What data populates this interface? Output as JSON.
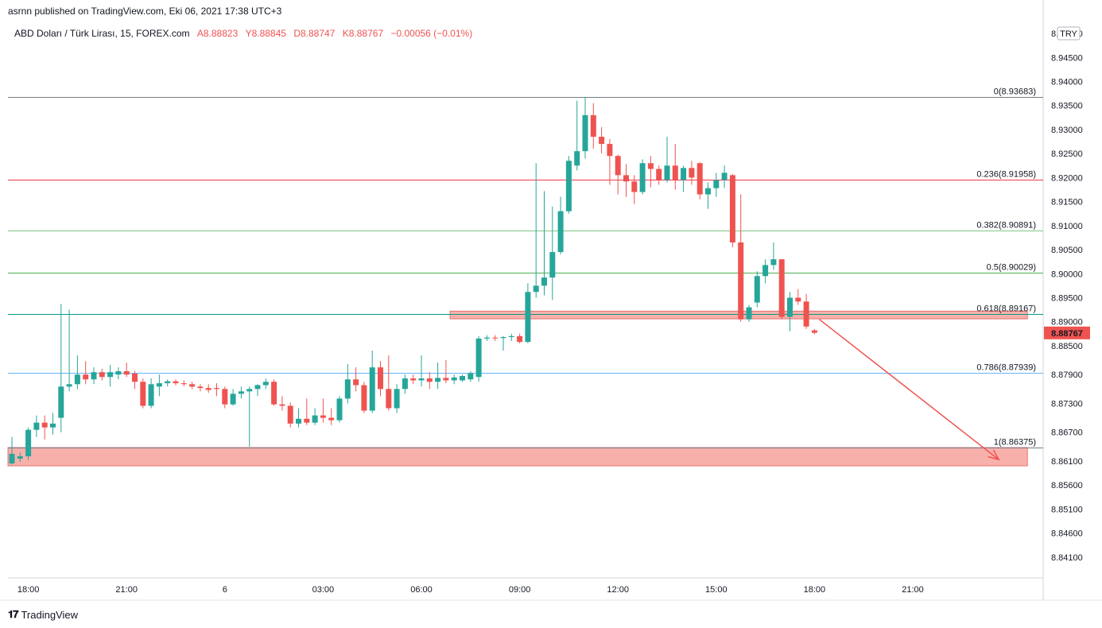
{
  "attribution": "asrnn published on TradingView.com, Eki 06, 2021 17:38 UTC+3",
  "symbol": {
    "name": "ABD Doları / Türk Lirası, 15, FOREX.com",
    "open": "A8.88823",
    "high": "Y8.88845",
    "low": "D8.88747",
    "close": "K8.88767",
    "change": "−0.00056 (−0.01%)"
  },
  "currency_badge": "TRY",
  "footer": {
    "logo_text": "TradingView"
  },
  "colors": {
    "up": "#26a69a",
    "down": "#ef5350",
    "zone": "#f7a29b",
    "arrow": "#ef5350"
  },
  "chart_data": {
    "type": "candlestick",
    "title": "ABD Doları / Türk Lirası, 15, FOREX.com",
    "ylim": [
      8.838,
      8.952
    ],
    "y_ticks": [
      "8.95000",
      "8.94500",
      "8.94000",
      "8.93500",
      "8.93000",
      "8.92500",
      "8.92000",
      "8.91500",
      "8.91000",
      "8.90500",
      "8.90000",
      "8.89500",
      "8.89000",
      "8.88500",
      "8.87900",
      "8.87300",
      "8.86700",
      "8.86100",
      "8.85600",
      "8.85100",
      "8.84600",
      "8.84100"
    ],
    "x_ticks": [
      {
        "label": "18:00",
        "t": 2
      },
      {
        "label": "21:00",
        "t": 14
      },
      {
        "label": "6",
        "t": 26
      },
      {
        "label": "03:00",
        "t": 38
      },
      {
        "label": "06:00",
        "t": 50
      },
      {
        "label": "09:00",
        "t": 62
      },
      {
        "label": "12:00",
        "t": 74
      },
      {
        "label": "15:00",
        "t": 86
      },
      {
        "label": "18:00",
        "t": 98
      },
      {
        "label": "21:00",
        "t": 110
      }
    ],
    "fibonacci": [
      {
        "label": "0(8.93683)",
        "level": 8.93683,
        "color": "#787b86"
      },
      {
        "label": "0.236(8.91958)",
        "level": 8.91958,
        "color": "#f23645"
      },
      {
        "label": "0.382(8.90891)",
        "level": 8.90891,
        "color": "#81c784"
      },
      {
        "label": "0.5(8.90029)",
        "level": 8.90029,
        "color": "#4caf50"
      },
      {
        "label": "0.618(8.89167)",
        "level": 8.89167,
        "color": "#089981"
      },
      {
        "label": "0.786(8.87939)",
        "level": 8.87939,
        "color": "#64b5f6"
      },
      {
        "label": "1(8.86375)",
        "level": 8.86375,
        "color": "#787b86"
      }
    ],
    "zones": [
      {
        "from_t": -0.5,
        "to_t": 124,
        "low": 8.86,
        "high": 8.8638
      },
      {
        "from_t": 53.5,
        "to_t": 124,
        "low": 8.8906,
        "high": 8.8922
      }
    ],
    "arrow": {
      "from_t": 98,
      "from_price": 8.8905,
      "to_t": 120.5,
      "to_price": 8.8613
    },
    "last_price": {
      "label": "8.88767",
      "value": 8.88767
    },
    "candles": [
      {
        "t": 0,
        "o": 8.8605,
        "h": 8.866,
        "l": 8.8603,
        "c": 8.8625
      },
      {
        "t": 1,
        "o": 8.8615,
        "h": 8.8628,
        "l": 8.8608,
        "c": 8.862
      },
      {
        "t": 2,
        "o": 8.862,
        "h": 8.868,
        "l": 8.8612,
        "c": 8.8675
      },
      {
        "t": 3,
        "o": 8.8675,
        "h": 8.8705,
        "l": 8.866,
        "c": 8.869
      },
      {
        "t": 4,
        "o": 8.869,
        "h": 8.8705,
        "l": 8.8655,
        "c": 8.868
      },
      {
        "t": 5,
        "o": 8.868,
        "h": 8.871,
        "l": 8.8665,
        "c": 8.8688
      },
      {
        "t": 6,
        "o": 8.87,
        "h": 8.8937,
        "l": 8.867,
        "c": 8.8765
      },
      {
        "t": 7,
        "o": 8.8765,
        "h": 8.8925,
        "l": 8.8755,
        "c": 8.877
      },
      {
        "t": 8,
        "o": 8.877,
        "h": 8.883,
        "l": 8.876,
        "c": 8.879
      },
      {
        "t": 9,
        "o": 8.879,
        "h": 8.8818,
        "l": 8.877,
        "c": 8.878
      },
      {
        "t": 10,
        "o": 8.878,
        "h": 8.8805,
        "l": 8.877,
        "c": 8.8795
      },
      {
        "t": 11,
        "o": 8.8795,
        "h": 8.8802,
        "l": 8.8778,
        "c": 8.8785
      },
      {
        "t": 12,
        "o": 8.8785,
        "h": 8.881,
        "l": 8.8765,
        "c": 8.8795
      },
      {
        "t": 13,
        "o": 8.879,
        "h": 8.8805,
        "l": 8.878,
        "c": 8.8797
      },
      {
        "t": 14,
        "o": 8.8797,
        "h": 8.8815,
        "l": 8.8785,
        "c": 8.879
      },
      {
        "t": 15,
        "o": 8.8792,
        "h": 8.8798,
        "l": 8.876,
        "c": 8.8775
      },
      {
        "t": 16,
        "o": 8.8775,
        "h": 8.8782,
        "l": 8.872,
        "c": 8.8725
      },
      {
        "t": 17,
        "o": 8.8725,
        "h": 8.8782,
        "l": 8.872,
        "c": 8.877
      },
      {
        "t": 18,
        "o": 8.8765,
        "h": 8.879,
        "l": 8.8745,
        "c": 8.8772
      },
      {
        "t": 19,
        "o": 8.8772,
        "h": 8.878,
        "l": 8.8765,
        "c": 8.8776
      },
      {
        "t": 20,
        "o": 8.8776,
        "h": 8.878,
        "l": 8.8768,
        "c": 8.8772
      },
      {
        "t": 21,
        "o": 8.8772,
        "h": 8.8778,
        "l": 8.8766,
        "c": 8.877
      },
      {
        "t": 22,
        "o": 8.877,
        "h": 8.8775,
        "l": 8.876,
        "c": 8.8765
      },
      {
        "t": 23,
        "o": 8.8765,
        "h": 8.877,
        "l": 8.8755,
        "c": 8.8762
      },
      {
        "t": 24,
        "o": 8.8762,
        "h": 8.877,
        "l": 8.8752,
        "c": 8.8758
      },
      {
        "t": 25,
        "o": 8.8762,
        "h": 8.8772,
        "l": 8.8745,
        "c": 8.876
      },
      {
        "t": 26,
        "o": 8.876,
        "h": 8.8765,
        "l": 8.872,
        "c": 8.8728
      },
      {
        "t": 27,
        "o": 8.8728,
        "h": 8.876,
        "l": 8.8725,
        "c": 8.875
      },
      {
        "t": 28,
        "o": 8.875,
        "h": 8.8765,
        "l": 8.874,
        "c": 8.8755
      },
      {
        "t": 29,
        "o": 8.8755,
        "h": 8.8765,
        "l": 8.864,
        "c": 8.876
      },
      {
        "t": 30,
        "o": 8.876,
        "h": 8.877,
        "l": 8.8745,
        "c": 8.8768
      },
      {
        "t": 31,
        "o": 8.8768,
        "h": 8.8782,
        "l": 8.876,
        "c": 8.8775
      },
      {
        "t": 32,
        "o": 8.8775,
        "h": 8.878,
        "l": 8.8725,
        "c": 8.8728
      },
      {
        "t": 33,
        "o": 8.8728,
        "h": 8.8745,
        "l": 8.8715,
        "c": 8.8725
      },
      {
        "t": 34,
        "o": 8.8725,
        "h": 8.8732,
        "l": 8.868,
        "c": 8.8688
      },
      {
        "t": 35,
        "o": 8.8688,
        "h": 8.872,
        "l": 8.868,
        "c": 8.8698
      },
      {
        "t": 36,
        "o": 8.8698,
        "h": 8.874,
        "l": 8.8685,
        "c": 8.869
      },
      {
        "t": 37,
        "o": 8.869,
        "h": 8.872,
        "l": 8.8685,
        "c": 8.8705
      },
      {
        "t": 38,
        "o": 8.8705,
        "h": 8.874,
        "l": 8.869,
        "c": 8.87
      },
      {
        "t": 39,
        "o": 8.87,
        "h": 8.872,
        "l": 8.8685,
        "c": 8.8695
      },
      {
        "t": 40,
        "o": 8.8695,
        "h": 8.8745,
        "l": 8.869,
        "c": 8.874
      },
      {
        "t": 41,
        "o": 8.874,
        "h": 8.8812,
        "l": 8.873,
        "c": 8.878
      },
      {
        "t": 42,
        "o": 8.878,
        "h": 8.8805,
        "l": 8.8755,
        "c": 8.8768
      },
      {
        "t": 43,
        "o": 8.8768,
        "h": 8.8775,
        "l": 8.871,
        "c": 8.8715
      },
      {
        "t": 44,
        "o": 8.8715,
        "h": 8.884,
        "l": 8.871,
        "c": 8.8805
      },
      {
        "t": 45,
        "o": 8.8805,
        "h": 8.8818,
        "l": 8.8745,
        "c": 8.876
      },
      {
        "t": 46,
        "o": 8.876,
        "h": 8.883,
        "l": 8.8715,
        "c": 8.872
      },
      {
        "t": 47,
        "o": 8.872,
        "h": 8.877,
        "l": 8.871,
        "c": 8.876
      },
      {
        "t": 48,
        "o": 8.876,
        "h": 8.879,
        "l": 8.875,
        "c": 8.8782
      },
      {
        "t": 49,
        "o": 8.8782,
        "h": 8.879,
        "l": 8.877,
        "c": 8.8778
      },
      {
        "t": 50,
        "o": 8.8778,
        "h": 8.883,
        "l": 8.8765,
        "c": 8.8782
      },
      {
        "t": 51,
        "o": 8.8782,
        "h": 8.8795,
        "l": 8.876,
        "c": 8.8775
      },
      {
        "t": 52,
        "o": 8.8775,
        "h": 8.8815,
        "l": 8.876,
        "c": 8.8783
      },
      {
        "t": 53,
        "o": 8.8783,
        "h": 8.882,
        "l": 8.8772,
        "c": 8.8778
      },
      {
        "t": 54,
        "o": 8.8778,
        "h": 8.879,
        "l": 8.877,
        "c": 8.8784
      },
      {
        "t": 55,
        "o": 8.8778,
        "h": 8.879,
        "l": 8.8775,
        "c": 8.8787
      },
      {
        "t": 56,
        "o": 8.878,
        "h": 8.8797,
        "l": 8.8775,
        "c": 8.8793
      },
      {
        "t": 57,
        "o": 8.8785,
        "h": 8.887,
        "l": 8.8775,
        "c": 8.8865
      },
      {
        "t": 58,
        "o": 8.8865,
        "h": 8.8872,
        "l": 8.886,
        "c": 8.8867
      },
      {
        "t": 59,
        "o": 8.8867,
        "h": 8.8872,
        "l": 8.886,
        "c": 8.8866
      },
      {
        "t": 60,
        "o": 8.8866,
        "h": 8.887,
        "l": 8.884,
        "c": 8.8868
      },
      {
        "t": 61,
        "o": 8.8868,
        "h": 8.8875,
        "l": 8.886,
        "c": 8.887
      },
      {
        "t": 62,
        "o": 8.887,
        "h": 8.8875,
        "l": 8.8855,
        "c": 8.8858
      },
      {
        "t": 63,
        "o": 8.8858,
        "h": 8.898,
        "l": 8.8855,
        "c": 8.8962
      },
      {
        "t": 64,
        "o": 8.8962,
        "h": 8.923,
        "l": 8.895,
        "c": 8.8975
      },
      {
        "t": 65,
        "o": 8.8975,
        "h": 8.9172,
        "l": 8.8955,
        "c": 8.8992
      },
      {
        "t": 66,
        "o": 8.8992,
        "h": 8.914,
        "l": 8.8945,
        "c": 8.9045
      },
      {
        "t": 67,
        "o": 8.9045,
        "h": 8.916,
        "l": 8.904,
        "c": 8.913
      },
      {
        "t": 68,
        "o": 8.913,
        "h": 8.9245,
        "l": 8.9125,
        "c": 8.9235
      },
      {
        "t": 69,
        "o": 8.9225,
        "h": 8.936,
        "l": 8.9215,
        "c": 8.9255
      },
      {
        "t": 70,
        "o": 8.9255,
        "h": 8.9368,
        "l": 8.924,
        "c": 8.933
      },
      {
        "t": 71,
        "o": 8.933,
        "h": 8.9355,
        "l": 8.926,
        "c": 8.9285
      },
      {
        "t": 72,
        "o": 8.9285,
        "h": 8.9305,
        "l": 8.925,
        "c": 8.927
      },
      {
        "t": 73,
        "o": 8.927,
        "h": 8.928,
        "l": 8.9185,
        "c": 8.9245
      },
      {
        "t": 74,
        "o": 8.9245,
        "h": 8.9248,
        "l": 8.9165,
        "c": 8.9205
      },
      {
        "t": 75,
        "o": 8.9205,
        "h": 8.9228,
        "l": 8.916,
        "c": 8.9192
      },
      {
        "t": 76,
        "o": 8.9192,
        "h": 8.9205,
        "l": 8.9145,
        "c": 8.917
      },
      {
        "t": 77,
        "o": 8.917,
        "h": 8.9238,
        "l": 8.9165,
        "c": 8.923
      },
      {
        "t": 78,
        "o": 8.923,
        "h": 8.9245,
        "l": 8.918,
        "c": 8.9218
      },
      {
        "t": 79,
        "o": 8.9218,
        "h": 8.9225,
        "l": 8.9185,
        "c": 8.9195
      },
      {
        "t": 80,
        "o": 8.9195,
        "h": 8.9285,
        "l": 8.919,
        "c": 8.9225
      },
      {
        "t": 81,
        "o": 8.9225,
        "h": 8.927,
        "l": 8.9175,
        "c": 8.9195
      },
      {
        "t": 82,
        "o": 8.9195,
        "h": 8.9225,
        "l": 8.917,
        "c": 8.922
      },
      {
        "t": 83,
        "o": 8.922,
        "h": 8.9235,
        "l": 8.9185,
        "c": 8.92
      },
      {
        "t": 84,
        "o": 8.923,
        "h": 8.9232,
        "l": 8.9155,
        "c": 8.9165
      },
      {
        "t": 85,
        "o": 8.9165,
        "h": 8.919,
        "l": 8.9135,
        "c": 8.9178
      },
      {
        "t": 86,
        "o": 8.9178,
        "h": 8.921,
        "l": 8.916,
        "c": 8.9195
      },
      {
        "t": 87,
        "o": 8.9195,
        "h": 8.9225,
        "l": 8.9178,
        "c": 8.921
      },
      {
        "t": 88,
        "o": 8.9205,
        "h": 8.9208,
        "l": 8.9055,
        "c": 8.9065
      },
      {
        "t": 89,
        "o": 8.9065,
        "h": 8.9165,
        "l": 8.89,
        "c": 8.8905
      },
      {
        "t": 90,
        "o": 8.8905,
        "h": 8.8935,
        "l": 8.89,
        "c": 8.893
      },
      {
        "t": 91,
        "o": 8.894,
        "h": 8.9005,
        "l": 8.893,
        "c": 8.8995
      },
      {
        "t": 92,
        "o": 8.8995,
        "h": 8.903,
        "l": 8.898,
        "c": 8.9018
      },
      {
        "t": 93,
        "o": 8.9018,
        "h": 8.9065,
        "l": 8.9008,
        "c": 8.903
      },
      {
        "t": 94,
        "o": 8.903,
        "h": 8.903,
        "l": 8.8905,
        "c": 8.891
      },
      {
        "t": 95,
        "o": 8.891,
        "h": 8.8962,
        "l": 8.888,
        "c": 8.895
      },
      {
        "t": 96,
        "o": 8.895,
        "h": 8.8968,
        "l": 8.8935,
        "c": 8.8942
      },
      {
        "t": 97,
        "o": 8.8942,
        "h": 8.8958,
        "l": 8.8885,
        "c": 8.889
      },
      {
        "t": 98,
        "o": 8.8882,
        "h": 8.8885,
        "l": 8.8874,
        "c": 8.8877
      }
    ]
  }
}
